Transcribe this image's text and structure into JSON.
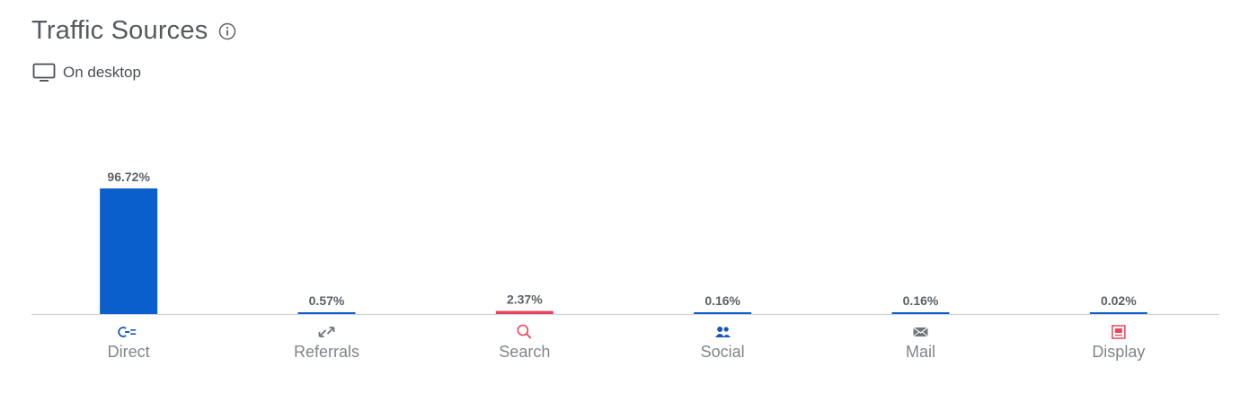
{
  "header": {
    "title": "Traffic Sources",
    "subtitle": "On desktop"
  },
  "icons": {
    "title_info": "info-icon",
    "subtitle": "desktop-icon"
  },
  "colors": {
    "bar_primary": "#0a5fcc",
    "bar_highlight": "#e8455a",
    "baseline": "#cfd2d6",
    "icon_blue": "#1a56b8",
    "icon_red": "#e8455a",
    "icon_gray": "#6f747a"
  },
  "chart_data": {
    "type": "bar",
    "title": "Traffic Sources",
    "subtitle": "On desktop",
    "categories": [
      "Direct",
      "Referrals",
      "Search",
      "Social",
      "Mail",
      "Display"
    ],
    "values": [
      96.72,
      0.57,
      2.37,
      0.16,
      0.16,
      0.02
    ],
    "value_labels": [
      "96.72%",
      "0.57%",
      "2.37%",
      "0.16%",
      "0.16%",
      "0.02%"
    ],
    "category_icons": [
      "direct-icon",
      "referrals-icon",
      "search-icon",
      "social-icon",
      "mail-icon",
      "display-icon"
    ],
    "bar_colors": [
      "#0a5fcc",
      "#0a5fcc",
      "#e8455a",
      "#0a5fcc",
      "#0a5fcc",
      "#0a5fcc"
    ],
    "category_label_colors": [
      "#80858b",
      "#80858b",
      "#80858b",
      "#80858b",
      "#80858b",
      "#80858b"
    ],
    "ylim": [
      0,
      100
    ],
    "grid": false,
    "legend": "none"
  }
}
